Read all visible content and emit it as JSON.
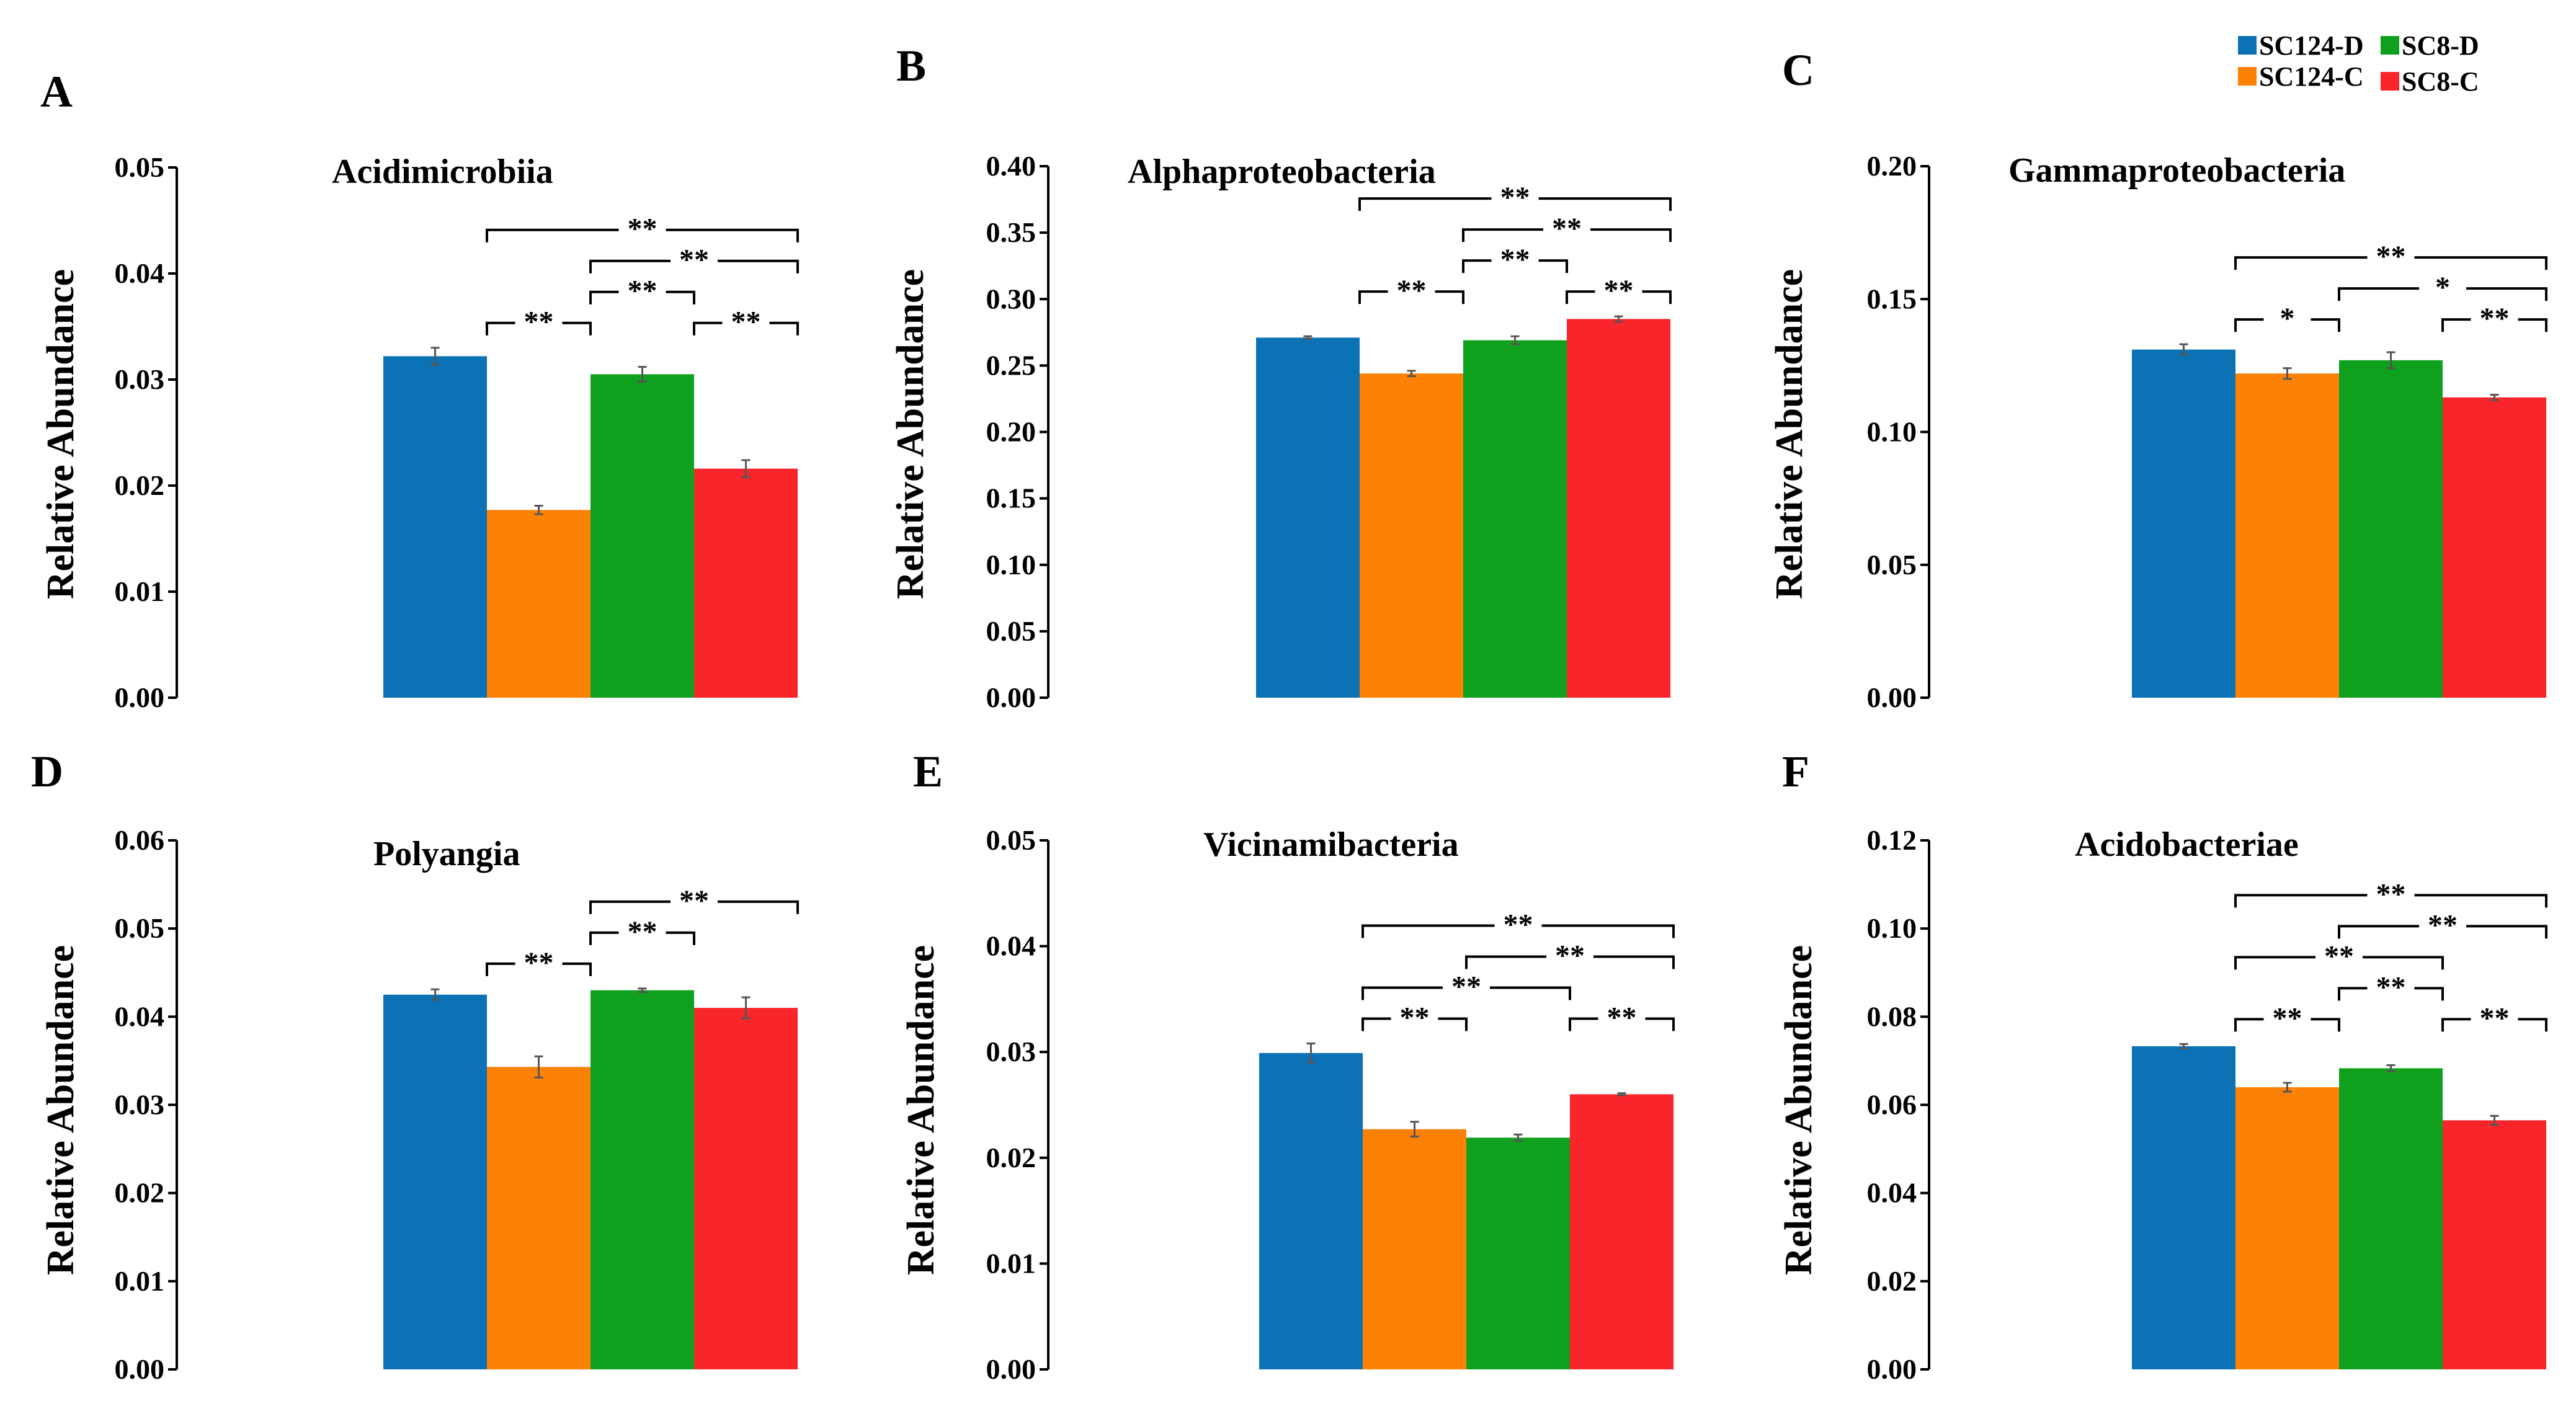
{
  "legend": [
    {
      "name": "SC124-D",
      "color": "#0a72b5"
    },
    {
      "name": "SC8-D",
      "color": "#0fa01e"
    },
    {
      "name": "SC124-C",
      "color": "#fd8104"
    },
    {
      "name": "SC8-C",
      "color": "#f8252a"
    }
  ],
  "chart_data": [
    {
      "type": "bar",
      "panel": "A",
      "title": "Acidimicrobiia",
      "ylabel": "Relative Abundance",
      "ylim": [
        0,
        0.05
      ],
      "ticks": [
        "0.00",
        "0.01",
        "0.02",
        "0.03",
        "0.04",
        "0.05"
      ],
      "categories": [
        "SC124-D",
        "SC124-C",
        "SC8-D",
        "SC8-C"
      ],
      "values": [
        0.0322,
        0.0177,
        0.0305,
        0.0216
      ],
      "errors": [
        0.0008,
        0.0004,
        0.0007,
        0.0008
      ],
      "significance": [
        {
          "from": 0,
          "to": 1,
          "label": "**"
        },
        {
          "from": 0,
          "to": 3,
          "label": "**"
        },
        {
          "from": 1,
          "to": 2,
          "label": "**"
        },
        {
          "from": 1,
          "to": 3,
          "label": "**"
        },
        {
          "from": 2,
          "to": 3,
          "label": "**"
        }
      ]
    },
    {
      "type": "bar",
      "panel": "B",
      "title": "Alphaproteobacteria",
      "ylabel": "Relative Abundance",
      "ylim": [
        0,
        0.4
      ],
      "ticks": [
        "0.00",
        "0.05",
        "0.10",
        "0.15",
        "0.20",
        "0.25",
        "0.30",
        "0.35",
        "0.40"
      ],
      "categories": [
        "SC124-D",
        "SC124-C",
        "SC8-D",
        "SC8-C"
      ],
      "values": [
        0.271,
        0.244,
        0.269,
        0.285
      ],
      "errors": [
        0.001,
        0.002,
        0.003,
        0.002
      ],
      "significance": [
        {
          "from": 0,
          "to": 1,
          "label": "**"
        },
        {
          "from": 0,
          "to": 3,
          "label": "**"
        },
        {
          "from": 1,
          "to": 2,
          "label": "**"
        },
        {
          "from": 1,
          "to": 3,
          "label": "**"
        },
        {
          "from": 2,
          "to": 3,
          "label": "**"
        }
      ]
    },
    {
      "type": "bar",
      "panel": "C",
      "title": "Gammaproteobacteria",
      "ylabel": "Relative Abundance",
      "ylim": [
        0,
        0.2
      ],
      "ticks": [
        "0.00",
        "0.05",
        "0.10",
        "0.15",
        "0.20"
      ],
      "categories": [
        "SC124-D",
        "SC124-C",
        "SC8-D",
        "SC8-C"
      ],
      "values": [
        0.131,
        0.122,
        0.127,
        0.113
      ],
      "errors": [
        0.002,
        0.002,
        0.003,
        0.001
      ],
      "significance": [
        {
          "from": 0,
          "to": 1,
          "label": "*"
        },
        {
          "from": 0,
          "to": 3,
          "label": "**"
        },
        {
          "from": 1,
          "to": 3,
          "label": "*"
        },
        {
          "from": 2,
          "to": 3,
          "label": "**"
        }
      ]
    },
    {
      "type": "bar",
      "panel": "D",
      "title": "Polyangia",
      "ylabel": "Relative Abundance",
      "ylim": [
        0,
        0.06
      ],
      "ticks": [
        "0.00",
        "0.01",
        "0.02",
        "0.03",
        "0.04",
        "0.05",
        "0.06"
      ],
      "categories": [
        "SC124-D",
        "SC124-C",
        "SC8-D",
        "SC8-C"
      ],
      "values": [
        0.0425,
        0.0343,
        0.043,
        0.041
      ],
      "errors": [
        0.0006,
        0.0012,
        0.0002,
        0.0012
      ],
      "significance": [
        {
          "from": 0,
          "to": 1,
          "label": "**"
        },
        {
          "from": 1,
          "to": 2,
          "label": "**"
        },
        {
          "from": 1,
          "to": 3,
          "label": "**"
        }
      ]
    },
    {
      "type": "bar",
      "panel": "E",
      "title": "Vicinamibacteria",
      "ylabel": "Relative Abundance",
      "ylim": [
        0,
        0.05
      ],
      "ticks": [
        "0.00",
        "0.01",
        "0.02",
        "0.03",
        "0.04",
        "0.05"
      ],
      "categories": [
        "SC124-D",
        "SC124-C",
        "SC8-D",
        "SC8-C"
      ],
      "values": [
        0.0299,
        0.0227,
        0.0219,
        0.026
      ],
      "errors": [
        0.0009,
        0.0007,
        0.0003,
        0.0001
      ],
      "significance": [
        {
          "from": 0,
          "to": 1,
          "label": "**"
        },
        {
          "from": 0,
          "to": 2,
          "label": "**"
        },
        {
          "from": 0,
          "to": 3,
          "label": "**"
        },
        {
          "from": 1,
          "to": 3,
          "label": "**"
        },
        {
          "from": 2,
          "to": 3,
          "label": "**"
        }
      ]
    },
    {
      "type": "bar",
      "panel": "F",
      "title": "Acidobacteriae",
      "ylabel": "Relative Abundance",
      "ylim": [
        0,
        0.12
      ],
      "ticks": [
        "0.00",
        "0.02",
        "0.04",
        "0.06",
        "0.08",
        "0.10",
        "0.12"
      ],
      "categories": [
        "SC124-D",
        "SC124-C",
        "SC8-D",
        "SC8-C"
      ],
      "values": [
        0.0733,
        0.064,
        0.0683,
        0.0565
      ],
      "errors": [
        0.0005,
        0.001,
        0.0007,
        0.001
      ],
      "significance": [
        {
          "from": 0,
          "to": 1,
          "label": "**"
        },
        {
          "from": 0,
          "to": 2,
          "label": "**"
        },
        {
          "from": 0,
          "to": 3,
          "label": "**"
        },
        {
          "from": 1,
          "to": 2,
          "label": "**"
        },
        {
          "from": 1,
          "to": 3,
          "label": "**"
        },
        {
          "from": 2,
          "to": 3,
          "label": "**"
        }
      ]
    }
  ]
}
